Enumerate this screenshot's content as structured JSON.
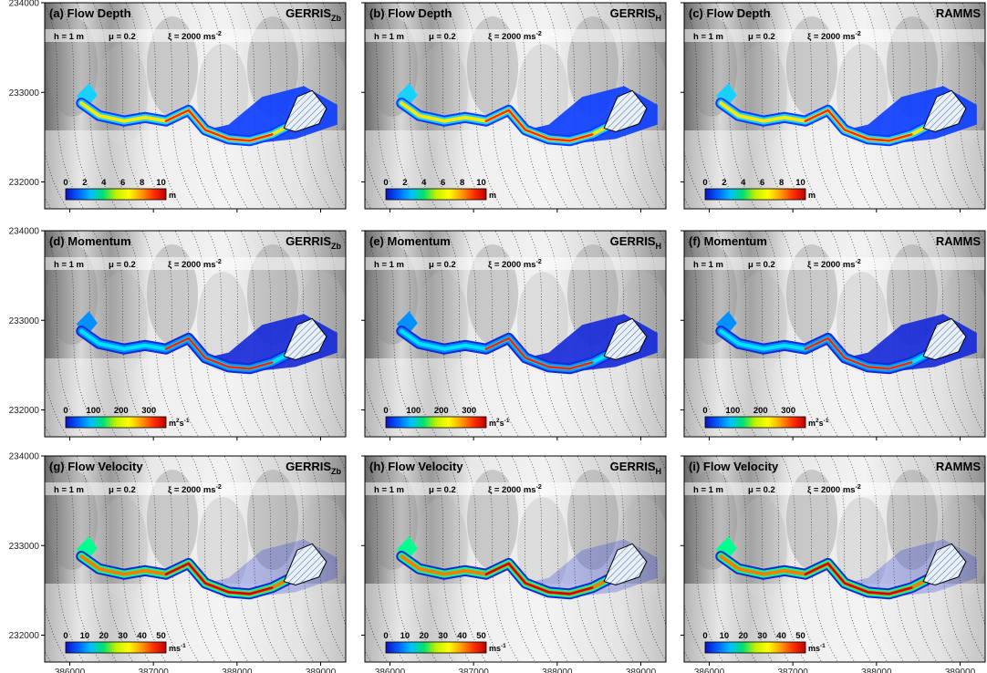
{
  "chart_data": {
    "type": "heatmap",
    "grid": {
      "rows": 3,
      "cols": 3
    },
    "x_axis": {
      "ticks": [
        386000,
        387000,
        388000,
        389000
      ],
      "labels": [
        "386000",
        "387000",
        "388000",
        "389000"
      ],
      "range": [
        385700,
        389300
      ]
    },
    "y_axis": {
      "ticks": [
        232000,
        233000,
        234000
      ],
      "labels": [
        "232000",
        "233000",
        "234000"
      ],
      "range": [
        231700,
        234000
      ]
    },
    "params": {
      "h": "h = 1 m",
      "mu": "μ = 0.2",
      "xi": "ξ = 2000 ms",
      "xi_exp": "-2"
    },
    "rows": [
      {
        "quantity": "Flow Depth",
        "colorbar": {
          "ticks": [
            "0",
            "2",
            "4",
            "6",
            "8",
            "10"
          ],
          "values": [
            0,
            2,
            4,
            6,
            8,
            10
          ],
          "unit": "m",
          "unit_exp": ""
        }
      },
      {
        "quantity": "Momentum",
        "colorbar": {
          "ticks": [
            "0",
            "100",
            "200",
            "300"
          ],
          "values": [
            0,
            100,
            200,
            300
          ],
          "unit": "m",
          "unit_exp": "2",
          "unit2": "s",
          "unit2_exp": "-1"
        }
      },
      {
        "quantity": "Flow Velocity",
        "colorbar": {
          "ticks": [
            "0",
            "10",
            "20",
            "30",
            "40",
            "50"
          ],
          "values": [
            0,
            10,
            20,
            30,
            40,
            50
          ],
          "unit": "ms",
          "unit_exp": "-1"
        }
      }
    ],
    "columns": [
      {
        "model": "GERRIS",
        "sub": "Zb"
      },
      {
        "model": "GERRIS",
        "sub": "H"
      },
      {
        "model": "RAMMS",
        "sub": ""
      }
    ],
    "panels": [
      {
        "label": "(a)",
        "row": 0,
        "col": 0
      },
      {
        "label": "(b)",
        "row": 0,
        "col": 1
      },
      {
        "label": "(c)",
        "row": 0,
        "col": 2
      },
      {
        "label": "(d)",
        "row": 1,
        "col": 0
      },
      {
        "label": "(e)",
        "row": 1,
        "col": 1
      },
      {
        "label": "(f)",
        "row": 1,
        "col": 2
      },
      {
        "label": "(g)",
        "row": 2,
        "col": 0
      },
      {
        "label": "(h)",
        "row": 2,
        "col": 1
      },
      {
        "label": "(i)",
        "row": 2,
        "col": 2
      }
    ],
    "colormap": [
      "#1010c0",
      "#0060ff",
      "#00c0ff",
      "#00e070",
      "#c0f000",
      "#ffff00",
      "#ffa000",
      "#ff3000",
      "#c00000"
    ],
    "background": "shaded-relief hillshade with dotted contour lines",
    "release_area": "hatched polygon"
  }
}
